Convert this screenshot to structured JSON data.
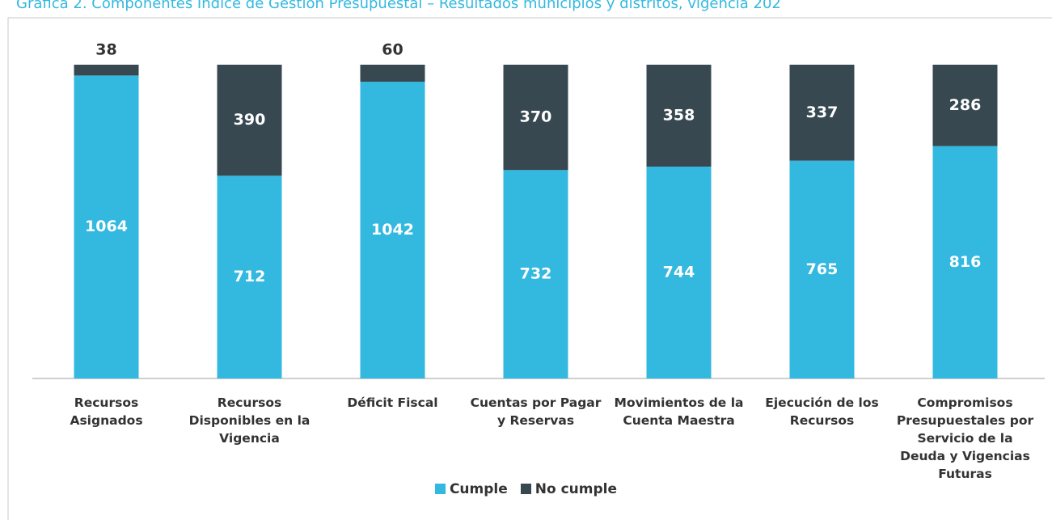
{
  "chart_data": {
    "type": "stacked_bar",
    "title": "Gráfica 2. Componentes Índice de Gestión Presupuestal – Resultados municipios y distritos, vigencia 202",
    "categories": [
      "Recursos Asignados",
      "Recursos Disponibles en la Vigencia",
      "Déficit Fiscal",
      "Cuentas por Pagar y Reservas",
      "Movimientos de la Cuenta Maestra",
      "Ejecución de los Recursos",
      "Compromisos Presupuestales por Servicio de la Deuda y Vigencias Futuras"
    ],
    "series": [
      {
        "name": "Cumple",
        "color": "#33b8e0",
        "values": [
          1064,
          712,
          1042,
          732,
          744,
          765,
          816
        ]
      },
      {
        "name": "No cumple",
        "color": "#374851",
        "values": [
          38,
          390,
          60,
          370,
          358,
          337,
          286
        ]
      }
    ],
    "legend": "bottom"
  }
}
